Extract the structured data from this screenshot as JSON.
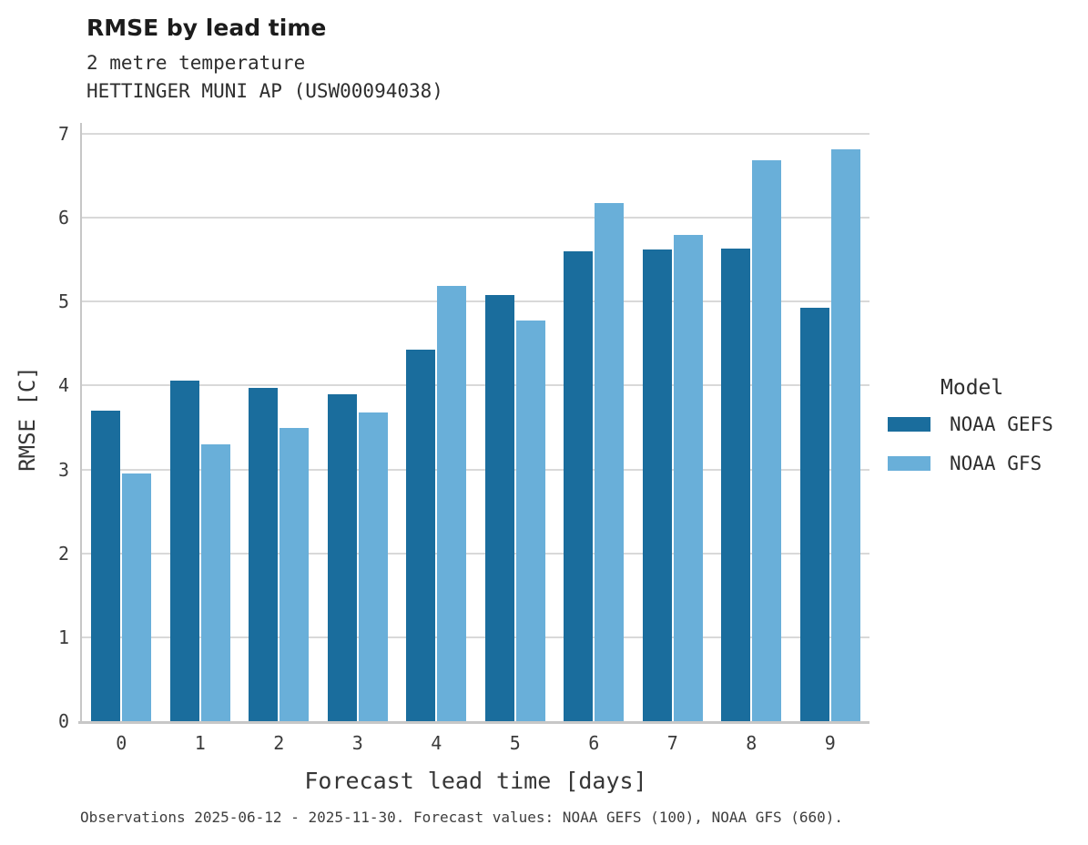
{
  "header": {
    "title": "RMSE by lead time",
    "subtitle_line1": "2 metre temperature",
    "subtitle_line2": "HETTINGER MUNI AP (USW00094038)"
  },
  "chart_data": {
    "type": "bar",
    "title": "RMSE by lead time",
    "subtitle": [
      "2 metre temperature",
      "HETTINGER MUNI AP (USW00094038)"
    ],
    "xlabel": "Forecast lead time [days]",
    "ylabel": "RMSE [C]",
    "categories": [
      "0",
      "1",
      "2",
      "3",
      "4",
      "5",
      "6",
      "7",
      "8",
      "9"
    ],
    "series": [
      {
        "name": "NOAA GEFS",
        "color": "#1a6d9d",
        "values": [
          3.7,
          4.06,
          3.97,
          3.9,
          4.43,
          5.08,
          5.6,
          5.62,
          5.63,
          4.93
        ]
      },
      {
        "name": "NOAA GFS",
        "color": "#69afd9",
        "values": [
          2.95,
          3.3,
          3.5,
          3.68,
          5.19,
          4.78,
          6.18,
          5.8,
          6.68,
          6.82
        ]
      }
    ],
    "ylim": [
      0,
      7.13
    ],
    "yticks": [
      0,
      1,
      2,
      3,
      4,
      5,
      6,
      7
    ],
    "grid": true,
    "legend_title": "Model",
    "legend_position": "right-center",
    "colors": {
      "gridline": "#d9d9d9",
      "spine": "#c7c7c7"
    }
  },
  "caption": "Observations 2025-06-12 - 2025-11-30. Forecast values: NOAA GEFS (100), NOAA GFS (660)."
}
